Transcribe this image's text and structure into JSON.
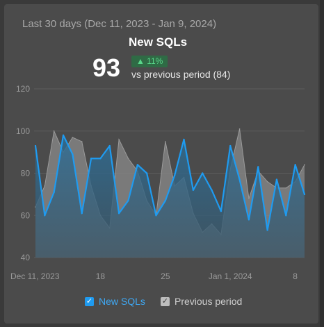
{
  "header": {
    "subtitle": "Last 30 days (Dec 11, 2023 - Jan 9, 2024)",
    "metric_title": "New SQLs",
    "metric_value": "93",
    "delta": "▲ 11%",
    "comparison": "vs previous period (84)"
  },
  "colors": {
    "current": "#1f9bf0",
    "previous": "#8a8a8a",
    "delta_positive": "#59d68a"
  },
  "chart_data": {
    "type": "line",
    "title": "",
    "xlabel": "",
    "ylabel": "",
    "ylim": [
      40,
      120
    ],
    "yticks": [
      40,
      60,
      80,
      100,
      120
    ],
    "grid": true,
    "x_tick_labels": [
      {
        "index": 0,
        "label": "Dec 11, 2023"
      },
      {
        "index": 7,
        "label": "18"
      },
      {
        "index": 14,
        "label": "25"
      },
      {
        "index": 21,
        "label": "Jan 1, 2024"
      },
      {
        "index": 28,
        "label": "8"
      }
    ],
    "x": [
      "Dec 11",
      "Dec 12",
      "Dec 13",
      "Dec 14",
      "Dec 15",
      "Dec 16",
      "Dec 17",
      "Dec 18",
      "Dec 19",
      "Dec 20",
      "Dec 21",
      "Dec 22",
      "Dec 23",
      "Dec 24",
      "Dec 25",
      "Dec 26",
      "Dec 27",
      "Dec 28",
      "Dec 29",
      "Dec 30",
      "Dec 31",
      "Jan 1",
      "Jan 2",
      "Jan 3",
      "Jan 4",
      "Jan 5",
      "Jan 6",
      "Jan 7",
      "Jan 8",
      "Jan 9"
    ],
    "series": [
      {
        "name": "New SQLs",
        "values": [
          93,
          60,
          71,
          98,
          89,
          61,
          87,
          87,
          93,
          61,
          67,
          84,
          80,
          60,
          67,
          79,
          96,
          72,
          80,
          72,
          62,
          93,
          77,
          58,
          83,
          53,
          77,
          60,
          84,
          70
        ]
      },
      {
        "name": "Previous period",
        "values": [
          64,
          74,
          100,
          90,
          97,
          95,
          74,
          60,
          54,
          96,
          87,
          81,
          67,
          60,
          95,
          74,
          78,
          61,
          52,
          56,
          51,
          82,
          101,
          68,
          81,
          76,
          73,
          73,
          76,
          84
        ]
      }
    ],
    "legend": {
      "position": "bottom",
      "items": [
        {
          "label": "New SQLs",
          "check": "✓"
        },
        {
          "label": "Previous period",
          "check": "✓"
        }
      ]
    }
  }
}
